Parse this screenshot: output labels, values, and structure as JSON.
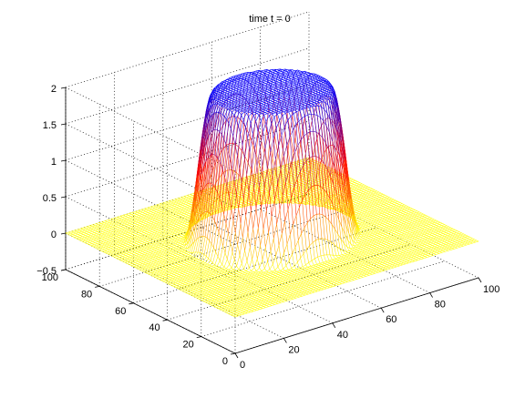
{
  "chart_data": {
    "type": "surface-mesh",
    "title": "time t = 0",
    "xlabel": "",
    "ylabel": "",
    "zlabel": "",
    "xlim": [
      0,
      100
    ],
    "ylim": [
      0,
      100
    ],
    "zlim": [
      -0.5,
      2
    ],
    "x_ticks": [
      "0",
      "20",
      "40",
      "60",
      "80",
      "100"
    ],
    "y_ticks": [
      "0",
      "20",
      "40",
      "60",
      "80",
      "100"
    ],
    "z_ticks": [
      "−0.5",
      "0",
      "0.5",
      "1",
      "1.5",
      "2"
    ],
    "grid": true,
    "surface": {
      "description_values": {
        "plateau_height": 2,
        "base_height": 0,
        "center": [
          50,
          50
        ],
        "outer_radius": 30,
        "inner_radius": 20
      },
      "colormap": [
        "#0000ff",
        "#ff0000",
        "#ffff00"
      ],
      "colormap_stops": [
        2,
        1,
        0
      ]
    }
  }
}
